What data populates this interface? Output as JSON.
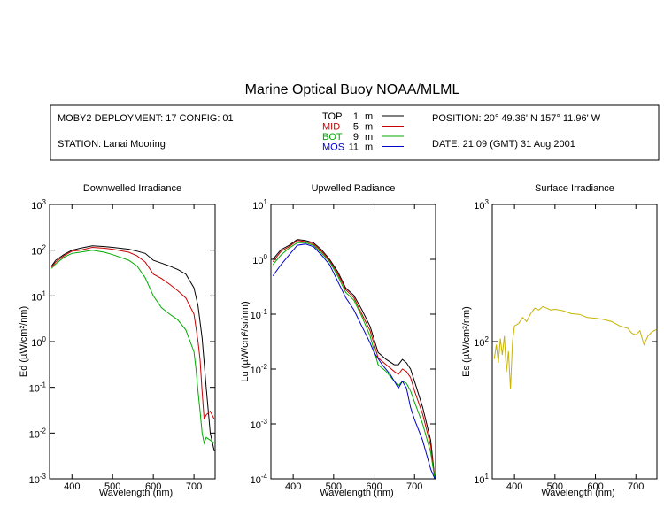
{
  "title": "Marine Optical Buoy NOAA/MLML",
  "info": {
    "deployment": "MOBY2 DEPLOYMENT: 17 CONFIG: 01",
    "station": "STATION: Lanai Mooring",
    "position": "POSITION: 20° 49.36' N   157° 11.96' W",
    "date": "DATE: 21:09 (GMT) 31 Aug 2001",
    "legend": [
      {
        "label": "TOP",
        "depth": "1",
        "unit": "m",
        "color": "#000000"
      },
      {
        "label": "MID",
        "depth": "5",
        "unit": "m",
        "color": "#cc0000"
      },
      {
        "label": "BOT",
        "depth": "9",
        "unit": "m",
        "color": "#00aa00"
      },
      {
        "label": "MOS",
        "depth": "11",
        "unit": "m",
        "color": "#0000cc"
      }
    ]
  },
  "chart_data": [
    {
      "type": "line",
      "title": "Downwelled Irradiance",
      "xlabel": "Wavelength (nm)",
      "ylabel": "Ed  (µW/cm²/nm)",
      "xlim": [
        345,
        752
      ],
      "ylim": [
        0.001,
        1000
      ],
      "yscale": "log",
      "xticks": [
        400,
        500,
        600,
        700
      ],
      "yticks": [
        {
          "b": "10",
          "e": "-3",
          "v": 0.001
        },
        {
          "b": "10",
          "e": "-2",
          "v": 0.01
        },
        {
          "b": "10",
          "e": "-1",
          "v": 0.1
        },
        {
          "b": "10",
          "e": "0",
          "v": 1
        },
        {
          "b": "10",
          "e": "1",
          "v": 10
        },
        {
          "b": "10",
          "e": "2",
          "v": 100
        },
        {
          "b": "10",
          "e": "3",
          "v": 1000
        }
      ],
      "series": [
        {
          "name": "TOP",
          "color": "#000000",
          "x": [
            350,
            360,
            380,
            400,
            420,
            450,
            480,
            500,
            540,
            560,
            580,
            600,
            620,
            640,
            660,
            680,
            700,
            710,
            720,
            730,
            740,
            750
          ],
          "y": [
            45,
            60,
            80,
            100,
            110,
            125,
            120,
            115,
            105,
            95,
            85,
            60,
            52,
            45,
            38,
            30,
            15,
            6,
            1.2,
            0.1,
            0.01,
            0.004
          ]
        },
        {
          "name": "MID",
          "color": "#cc0000",
          "x": [
            350,
            360,
            380,
            400,
            420,
            450,
            480,
            500,
            540,
            560,
            580,
            600,
            620,
            640,
            660,
            680,
            700,
            710,
            715,
            720,
            725,
            730,
            740,
            750
          ],
          "y": [
            42,
            55,
            75,
            95,
            100,
            115,
            110,
            105,
            90,
            75,
            55,
            30,
            24,
            18,
            13,
            9,
            4,
            1,
            0.4,
            0.08,
            0.02,
            0.025,
            0.03,
            0.02
          ]
        },
        {
          "name": "BOT",
          "color": "#00aa00",
          "x": [
            350,
            360,
            380,
            400,
            420,
            450,
            480,
            500,
            540,
            560,
            580,
            600,
            620,
            640,
            660,
            680,
            700,
            705,
            710,
            715,
            720,
            725,
            730,
            740,
            750
          ],
          "y": [
            40,
            50,
            70,
            85,
            90,
            100,
            90,
            80,
            60,
            45,
            25,
            10,
            5.5,
            4,
            3,
            1.8,
            0.6,
            0.25,
            0.08,
            0.03,
            0.01,
            0.006,
            0.008,
            0.007,
            0.006
          ]
        }
      ]
    },
    {
      "type": "line",
      "title": "Upwelled Radiance",
      "xlabel": "Wavelength (nm)",
      "ylabel": "Lu  (µW/cm²/sr/nm)",
      "xlim": [
        345,
        752
      ],
      "ylim": [
        0.0001,
        10
      ],
      "yscale": "log",
      "xticks": [
        400,
        500,
        600,
        700
      ],
      "yticks": [
        {
          "b": "10",
          "e": "-4",
          "v": 0.0001
        },
        {
          "b": "10",
          "e": "-3",
          "v": 0.001
        },
        {
          "b": "10",
          "e": "-2",
          "v": 0.01
        },
        {
          "b": "10",
          "e": "-1",
          "v": 0.1
        },
        {
          "b": "10",
          "e": "0",
          "v": 1
        },
        {
          "b": "10",
          "e": "1",
          "v": 10
        }
      ],
      "series": [
        {
          "name": "TOP",
          "color": "#000000",
          "x": [
            350,
            370,
            390,
            410,
            430,
            450,
            470,
            490,
            510,
            530,
            550,
            570,
            590,
            610,
            630,
            650,
            660,
            670,
            680,
            690,
            700,
            720,
            740,
            750
          ],
          "y": [
            1.0,
            1.5,
            1.8,
            2.3,
            2.2,
            2.0,
            1.5,
            1.0,
            0.6,
            0.3,
            0.22,
            0.12,
            0.06,
            0.02,
            0.015,
            0.012,
            0.012,
            0.015,
            0.013,
            0.01,
            0.006,
            0.002,
            0.0005,
            0.0001
          ]
        },
        {
          "name": "MID",
          "color": "#cc0000",
          "x": [
            350,
            370,
            390,
            410,
            430,
            450,
            470,
            490,
            510,
            530,
            550,
            570,
            590,
            610,
            630,
            650,
            660,
            670,
            680,
            690,
            700,
            720,
            740,
            750
          ],
          "y": [
            0.9,
            1.4,
            1.7,
            2.2,
            2.1,
            1.9,
            1.4,
            0.95,
            0.55,
            0.28,
            0.2,
            0.1,
            0.05,
            0.016,
            0.012,
            0.009,
            0.008,
            0.01,
            0.009,
            0.007,
            0.004,
            0.0015,
            0.0004,
            0.0001
          ]
        },
        {
          "name": "BOT",
          "color": "#00aa00",
          "x": [
            350,
            370,
            390,
            410,
            430,
            450,
            470,
            490,
            510,
            530,
            550,
            570,
            590,
            610,
            630,
            650,
            660,
            670,
            680,
            690,
            700,
            720,
            740,
            750
          ],
          "y": [
            0.8,
            1.2,
            1.6,
            2.0,
            2.0,
            1.8,
            1.3,
            0.9,
            0.5,
            0.25,
            0.18,
            0.09,
            0.04,
            0.012,
            0.009,
            0.006,
            0.005,
            0.006,
            0.0055,
            0.004,
            0.0025,
            0.001,
            0.0003,
            0.0001
          ]
        },
        {
          "name": "MOS",
          "color": "#0000cc",
          "x": [
            350,
            370,
            390,
            410,
            430,
            450,
            470,
            490,
            510,
            530,
            550,
            570,
            590,
            600,
            620,
            640,
            650,
            660,
            670,
            680,
            690,
            700,
            720,
            740,
            750
          ],
          "y": [
            0.5,
            0.8,
            1.2,
            1.8,
            1.9,
            1.7,
            1.2,
            0.8,
            0.4,
            0.2,
            0.12,
            0.06,
            0.03,
            0.02,
            0.012,
            0.008,
            0.006,
            0.0045,
            0.006,
            0.0045,
            0.002,
            0.0012,
            0.0005,
            0.00015,
            0.0001
          ]
        }
      ]
    },
    {
      "type": "line",
      "title": "Surface Irradiance",
      "xlabel": "Wavelength (nm)",
      "ylabel": "Es  (µW/cm²/nm)",
      "xlim": [
        345,
        752
      ],
      "ylim": [
        10,
        1000
      ],
      "yscale": "log",
      "xticks": [
        400,
        500,
        600,
        700
      ],
      "yticks": [
        {
          "b": "10",
          "e": "1",
          "v": 10
        },
        {
          "b": "10",
          "e": "2",
          "v": 100
        },
        {
          "b": "10",
          "e": "3",
          "v": 1000
        }
      ],
      "series": [
        {
          "name": "Es",
          "color": "#c8b400",
          "x": [
            350,
            355,
            360,
            365,
            370,
            375,
            380,
            385,
            390,
            395,
            400,
            410,
            420,
            430,
            440,
            450,
            460,
            470,
            480,
            490,
            500,
            520,
            540,
            560,
            580,
            600,
            620,
            640,
            660,
            680,
            690,
            700,
            710,
            720,
            730,
            740,
            750
          ],
          "y": [
            75,
            95,
            70,
            105,
            80,
            110,
            60,
            85,
            45,
            100,
            130,
            135,
            150,
            140,
            160,
            175,
            170,
            180,
            175,
            170,
            172,
            168,
            160,
            158,
            150,
            148,
            145,
            140,
            130,
            125,
            115,
            112,
            120,
            95,
            110,
            118,
            122
          ]
        }
      ]
    }
  ]
}
